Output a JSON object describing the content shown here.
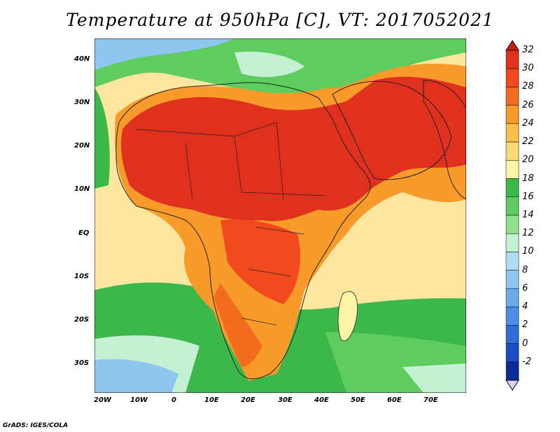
{
  "title": "Temperature at 950hPa [C], VT: 2017052021",
  "credit": "GrADS: IGES/COLA",
  "lat_labels": [
    "40N",
    "30N",
    "20N",
    "10N",
    "EQ",
    "10S",
    "20S",
    "30S"
  ],
  "lon_labels": [
    "20W",
    "10W",
    "0",
    "10E",
    "20E",
    "30E",
    "40E",
    "50E",
    "60E",
    "70E"
  ],
  "colorbar": {
    "labels": [
      "32",
      "30",
      "28",
      "26",
      "24",
      "22",
      "20",
      "18",
      "16",
      "14",
      "12",
      "10",
      "8",
      "6",
      "4",
      "2",
      "0",
      "-2"
    ],
    "colors": [
      "#e0301e",
      "#f04a1e",
      "#f46d1e",
      "#f99b2a",
      "#fbbf4a",
      "#fdd877",
      "#fdf4a6",
      "#3cb84a",
      "#5fcc5f",
      "#8ee08e",
      "#c4f0d4",
      "#aedcf4",
      "#8ec6f0",
      "#6aaaea",
      "#4a8ee4",
      "#2f6fd8",
      "#1a4dc4",
      "#0c2a9a"
    ],
    "top_color": "#c81e10",
    "bottom_color": "#dcd0f0"
  }
}
